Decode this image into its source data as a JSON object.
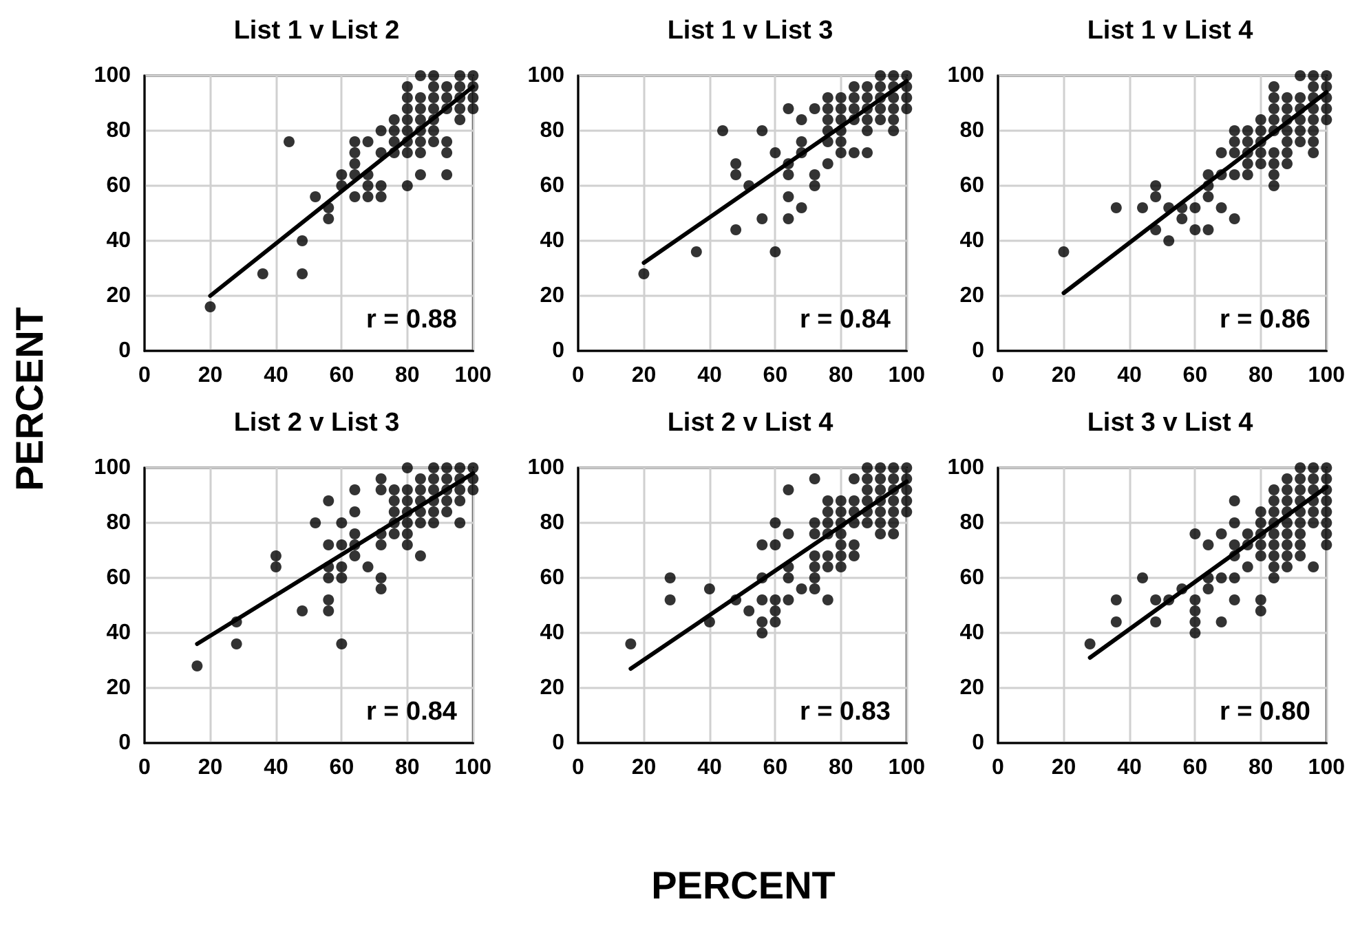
{
  "chart_data": [
    {
      "type": "scatter",
      "title": "List 1 v List 2",
      "ylabel": "PERCENT",
      "annotations": [
        "r = 0.88"
      ],
      "xlim": [
        0,
        100
      ],
      "xticks": [
        0,
        20,
        40,
        60,
        80,
        100
      ],
      "ylim": [
        0,
        100
      ],
      "yticks": [
        0,
        20,
        40,
        60,
        80,
        100
      ],
      "grid": true,
      "marker": "circle",
      "series": [
        {
          "color": "#000000",
          "x": [
            20,
            36,
            48,
            48,
            44,
            52,
            56,
            56,
            60,
            60,
            64,
            64,
            64,
            64,
            64,
            68,
            68,
            68,
            68,
            72,
            72,
            72,
            72,
            76,
            76,
            76,
            76,
            80,
            80,
            80,
            80,
            80,
            80,
            80,
            80,
            84,
            84,
            84,
            84,
            84,
            84,
            84,
            84,
            88,
            88,
            88,
            88,
            88,
            88,
            88,
            92,
            92,
            92,
            92,
            92,
            92,
            96,
            96,
            96,
            96,
            96,
            100,
            100,
            100,
            100
          ],
          "values": [
            16,
            28,
            28,
            40,
            76,
            56,
            52,
            48,
            64,
            60,
            76,
            72,
            68,
            64,
            56,
            76,
            64,
            60,
            56,
            80,
            72,
            60,
            56,
            84,
            80,
            76,
            72,
            96,
            92,
            88,
            84,
            80,
            76,
            72,
            60,
            100,
            92,
            88,
            84,
            80,
            76,
            72,
            64,
            100,
            96,
            92,
            88,
            84,
            80,
            76,
            96,
            92,
            88,
            76,
            72,
            64,
            100,
            96,
            92,
            88,
            84,
            100,
            96,
            92,
            88
          ]
        },
        {
          "type": "line",
          "marker": "none",
          "color": "#000000",
          "x": [
            20,
            100
          ],
          "values": [
            20,
            96
          ]
        }
      ]
    },
    {
      "type": "scatter",
      "title": "List 1 v List 3",
      "annotations": [
        "r = 0.84"
      ],
      "xlim": [
        0,
        100
      ],
      "xticks": [
        0,
        20,
        40,
        60,
        80,
        100
      ],
      "ylim": [
        0,
        100
      ],
      "yticks": [
        0,
        20,
        40,
        60,
        80,
        100
      ],
      "grid": true,
      "marker": "circle",
      "series": [
        {
          "color": "#000000",
          "x": [
            20,
            36,
            60,
            48,
            56,
            64,
            64,
            68,
            52,
            48,
            48,
            44,
            56,
            60,
            64,
            64,
            68,
            68,
            72,
            72,
            76,
            64,
            68,
            72,
            76,
            76,
            76,
            76,
            76,
            80,
            80,
            80,
            80,
            80,
            80,
            84,
            84,
            84,
            84,
            84,
            88,
            88,
            88,
            88,
            88,
            88,
            92,
            92,
            92,
            92,
            92,
            96,
            96,
            96,
            96,
            96,
            96,
            100,
            100,
            100,
            100
          ],
          "values": [
            28,
            36,
            36,
            44,
            48,
            48,
            56,
            52,
            60,
            68,
            64,
            80,
            80,
            72,
            68,
            64,
            76,
            72,
            64,
            60,
            68,
            88,
            84,
            88,
            92,
            88,
            84,
            80,
            76,
            92,
            88,
            84,
            80,
            76,
            72,
            96,
            92,
            88,
            84,
            72,
            96,
            92,
            88,
            84,
            80,
            72,
            100,
            96,
            92,
            88,
            84,
            100,
            96,
            92,
            88,
            84,
            80,
            100,
            96,
            92,
            88
          ]
        },
        {
          "type": "line",
          "marker": "none",
          "color": "#000000",
          "x": [
            20,
            100
          ],
          "values": [
            32,
            98
          ]
        }
      ]
    },
    {
      "type": "scatter",
      "title": "List 1 v List 4",
      "annotations": [
        "r = 0.86"
      ],
      "xlim": [
        0,
        100
      ],
      "xticks": [
        0,
        20,
        40,
        60,
        80,
        100
      ],
      "ylim": [
        0,
        100
      ],
      "yticks": [
        0,
        20,
        40,
        60,
        80,
        100
      ],
      "grid": true,
      "marker": "circle",
      "series": [
        {
          "color": "#000000",
          "x": [
            20,
            36,
            44,
            48,
            48,
            48,
            52,
            52,
            56,
            56,
            60,
            60,
            64,
            64,
            64,
            64,
            68,
            68,
            72,
            72,
            68,
            76,
            72,
            72,
            72,
            76,
            76,
            76,
            76,
            80,
            80,
            80,
            80,
            80,
            84,
            84,
            84,
            84,
            84,
            84,
            84,
            84,
            84,
            88,
            88,
            88,
            88,
            88,
            88,
            88,
            92,
            92,
            92,
            92,
            92,
            92,
            96,
            96,
            96,
            96,
            96,
            96,
            96,
            96,
            100,
            100,
            100,
            100,
            100
          ],
          "values": [
            36,
            52,
            52,
            60,
            56,
            44,
            52,
            40,
            52,
            48,
            52,
            44,
            44,
            64,
            60,
            56,
            64,
            52,
            64,
            48,
            72,
            64,
            80,
            76,
            72,
            80,
            76,
            72,
            68,
            84,
            80,
            76,
            72,
            68,
            96,
            92,
            88,
            84,
            80,
            72,
            68,
            64,
            60,
            92,
            88,
            84,
            80,
            76,
            72,
            68,
            100,
            92,
            88,
            84,
            80,
            76,
            100,
            96,
            92,
            88,
            84,
            80,
            76,
            72,
            100,
            96,
            92,
            88,
            84
          ]
        },
        {
          "type": "line",
          "marker": "none",
          "color": "#000000",
          "x": [
            20,
            100
          ],
          "values": [
            21,
            94
          ]
        }
      ]
    },
    {
      "type": "scatter",
      "title": "List 2 v List 3",
      "annotations": [
        "r = 0.84"
      ],
      "xlim": [
        0,
        100
      ],
      "xticks": [
        0,
        20,
        40,
        60,
        80,
        100
      ],
      "ylim": [
        0,
        100
      ],
      "yticks": [
        0,
        20,
        40,
        60,
        80,
        100
      ],
      "grid": true,
      "marker": "circle",
      "series": [
        {
          "color": "#000000",
          "x": [
            16,
            28,
            28,
            40,
            40,
            48,
            56,
            56,
            60,
            52,
            56,
            56,
            56,
            56,
            60,
            60,
            60,
            60,
            64,
            64,
            64,
            64,
            64,
            68,
            72,
            72,
            72,
            72,
            72,
            72,
            84,
            76,
            76,
            76,
            76,
            76,
            80,
            80,
            80,
            80,
            80,
            80,
            80,
            84,
            84,
            84,
            84,
            84,
            88,
            88,
            88,
            88,
            88,
            88,
            92,
            92,
            92,
            92,
            92,
            96,
            96,
            96,
            96,
            96,
            100,
            100,
            100
          ],
          "values": [
            28,
            36,
            44,
            68,
            64,
            48,
            52,
            48,
            36,
            80,
            88,
            72,
            64,
            60,
            80,
            72,
            64,
            60,
            92,
            84,
            76,
            72,
            68,
            64,
            60,
            56,
            96,
            92,
            76,
            72,
            68,
            92,
            88,
            84,
            80,
            76,
            100,
            92,
            88,
            84,
            80,
            76,
            72,
            96,
            92,
            88,
            84,
            80,
            100,
            96,
            92,
            88,
            84,
            80,
            100,
            96,
            92,
            88,
            84,
            100,
            96,
            92,
            88,
            80,
            100,
            96,
            92
          ]
        },
        {
          "type": "line",
          "marker": "none",
          "color": "#000000",
          "x": [
            16,
            100
          ],
          "values": [
            36,
            98
          ]
        }
      ]
    },
    {
      "type": "scatter",
      "title": "List 2 v List 4",
      "xlabel": "PERCENT",
      "annotations": [
        "r = 0.83"
      ],
      "xlim": [
        0,
        100
      ],
      "xticks": [
        0,
        20,
        40,
        60,
        80,
        100
      ],
      "ylim": [
        0,
        100
      ],
      "yticks": [
        0,
        20,
        40,
        60,
        80,
        100
      ],
      "grid": true,
      "marker": "circle",
      "series": [
        {
          "color": "#000000",
          "x": [
            16,
            28,
            28,
            40,
            40,
            48,
            52,
            56,
            56,
            56,
            56,
            60,
            60,
            60,
            56,
            60,
            60,
            64,
            64,
            64,
            64,
            64,
            68,
            72,
            76,
            72,
            72,
            72,
            72,
            72,
            72,
            76,
            76,
            76,
            76,
            76,
            76,
            80,
            80,
            80,
            80,
            80,
            80,
            80,
            84,
            84,
            84,
            84,
            84,
            84,
            88,
            88,
            88,
            88,
            88,
            88,
            92,
            92,
            92,
            92,
            92,
            92,
            92,
            96,
            96,
            96,
            96,
            96,
            96,
            96,
            100,
            100,
            100,
            100,
            100
          ],
          "values": [
            36,
            60,
            52,
            56,
            44,
            52,
            48,
            60,
            52,
            44,
            40,
            52,
            48,
            44,
            72,
            72,
            80,
            92,
            76,
            64,
            60,
            52,
            56,
            96,
            52,
            80,
            76,
            68,
            64,
            60,
            56,
            88,
            84,
            80,
            76,
            68,
            64,
            88,
            84,
            80,
            76,
            72,
            68,
            64,
            96,
            88,
            84,
            80,
            72,
            68,
            100,
            96,
            92,
            88,
            84,
            80,
            100,
            96,
            92,
            88,
            84,
            80,
            76,
            100,
            96,
            92,
            88,
            84,
            80,
            76,
            100,
            96,
            92,
            88,
            84
          ]
        },
        {
          "type": "line",
          "marker": "none",
          "color": "#000000",
          "x": [
            16,
            100
          ],
          "values": [
            27,
            95
          ]
        }
      ]
    },
    {
      "type": "scatter",
      "title": "List 3 v List 4",
      "annotations": [
        "r = 0.80"
      ],
      "xlim": [
        0,
        100
      ],
      "xticks": [
        0,
        20,
        40,
        60,
        80,
        100
      ],
      "ylim": [
        0,
        100
      ],
      "yticks": [
        0,
        20,
        40,
        60,
        80,
        100
      ],
      "grid": true,
      "marker": "circle",
      "series": [
        {
          "color": "#000000",
          "x": [
            28,
            36,
            36,
            44,
            48,
            48,
            52,
            56,
            60,
            60,
            60,
            60,
            60,
            64,
            64,
            64,
            68,
            68,
            68,
            72,
            72,
            72,
            72,
            72,
            72,
            76,
            76,
            76,
            80,
            80,
            80,
            80,
            80,
            80,
            80,
            84,
            84,
            84,
            84,
            84,
            84,
            84,
            84,
            84,
            88,
            88,
            88,
            88,
            88,
            88,
            88,
            88,
            88,
            92,
            92,
            92,
            92,
            92,
            92,
            92,
            92,
            92,
            96,
            96,
            96,
            96,
            96,
            96,
            96,
            100,
            100,
            100,
            100,
            100,
            100,
            100,
            100
          ],
          "values": [
            36,
            52,
            44,
            60,
            52,
            44,
            52,
            56,
            52,
            48,
            44,
            40,
            76,
            72,
            60,
            56,
            76,
            60,
            44,
            88,
            80,
            72,
            68,
            60,
            52,
            76,
            72,
            64,
            84,
            80,
            76,
            72,
            68,
            52,
            48,
            92,
            88,
            84,
            80,
            76,
            72,
            68,
            64,
            60,
            96,
            92,
            88,
            84,
            80,
            76,
            72,
            68,
            64,
            100,
            96,
            92,
            88,
            84,
            80,
            76,
            72,
            68,
            100,
            96,
            92,
            88,
            84,
            80,
            64,
            100,
            96,
            92,
            88,
            84,
            80,
            76,
            72
          ]
        },
        {
          "type": "line",
          "marker": "none",
          "color": "#000000",
          "x": [
            28,
            100
          ],
          "values": [
            31,
            93
          ]
        }
      ]
    }
  ]
}
